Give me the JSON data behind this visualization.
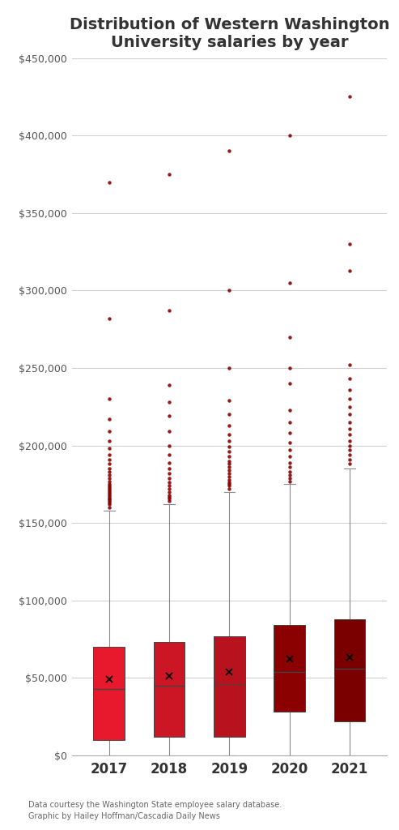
{
  "title": "Distribution of Western Washington\nUniversity salaries by year",
  "years": [
    2017,
    2018,
    2019,
    2020,
    2021
  ],
  "box_colors": [
    "#E8192C",
    "#CC1525",
    "#B8121F",
    "#8B0000",
    "#7A0000"
  ],
  "whisker_color": "#888888",
  "outlier_color": "#8B0000",
  "mean_color": "#000000",
  "background_color": "#ffffff",
  "subtitle": "Data courtesy the Washington State employee salary database.\nGraphic by Hailey Hoffman/Cascadia Daily News",
  "ylim": [
    0,
    450000
  ],
  "yticks": [
    0,
    50000,
    100000,
    150000,
    200000,
    250000,
    300000,
    350000,
    400000,
    450000
  ],
  "box_stats": {
    "2017": {
      "q1": 10000,
      "median": 43000,
      "q3": 70000,
      "whislo": 0,
      "whishi": 158000,
      "mean": 49000,
      "fliers": [
        160000,
        162000,
        163000,
        164000,
        165000,
        166000,
        167000,
        168000,
        169000,
        170000,
        171000,
        172000,
        173000,
        174000,
        175000,
        177000,
        179000,
        181000,
        183000,
        185000,
        188000,
        191000,
        194000,
        198000,
        203000,
        209000,
        217000,
        230000,
        282000,
        370000
      ]
    },
    "2018": {
      "q1": 12000,
      "median": 45000,
      "q3": 73000,
      "whislo": 0,
      "whishi": 162000,
      "mean": 51000,
      "fliers": [
        164000,
        166000,
        167000,
        168000,
        170000,
        172000,
        174000,
        176000,
        179000,
        182000,
        185000,
        189000,
        194000,
        200000,
        209000,
        219000,
        228000,
        239000,
        287000,
        375000
      ]
    },
    "2019": {
      "q1": 12000,
      "median": 46000,
      "q3": 77000,
      "whislo": 0,
      "whishi": 170000,
      "mean": 54000,
      "fliers": [
        172000,
        174000,
        175000,
        176000,
        178000,
        180000,
        182000,
        184000,
        186000,
        188000,
        190000,
        193000,
        196000,
        199000,
        203000,
        207000,
        213000,
        220000,
        229000,
        250000,
        300000,
        390000
      ]
    },
    "2020": {
      "q1": 28000,
      "median": 54000,
      "q3": 84000,
      "whislo": 0,
      "whishi": 175000,
      "mean": 62000,
      "fliers": [
        177000,
        179000,
        181000,
        183000,
        186000,
        189000,
        193000,
        197000,
        202000,
        208000,
        215000,
        223000,
        240000,
        250000,
        270000,
        305000,
        400000
      ]
    },
    "2021": {
      "q1": 22000,
      "median": 56000,
      "q3": 88000,
      "whislo": 0,
      "whishi": 185000,
      "mean": 63000,
      "fliers": [
        188000,
        191000,
        194000,
        197000,
        200000,
        203000,
        207000,
        211000,
        215000,
        220000,
        225000,
        230000,
        236000,
        243000,
        252000,
        313000,
        330000,
        425000
      ]
    }
  }
}
